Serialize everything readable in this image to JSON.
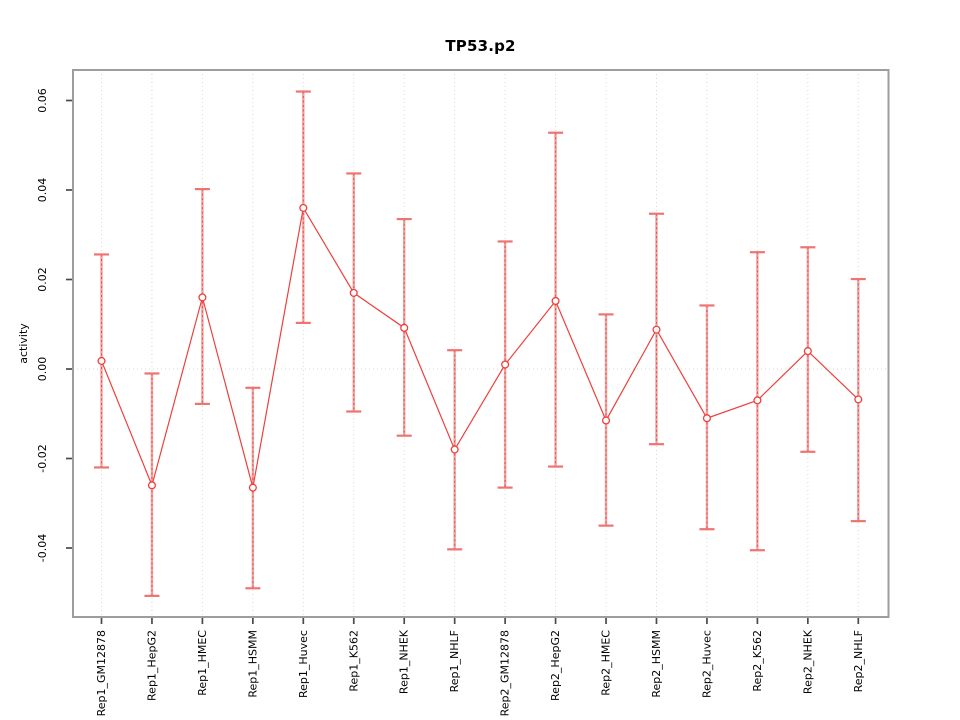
{
  "chart_data": {
    "type": "line",
    "title": "TP53.p2",
    "xlabel": "",
    "ylabel": "activity",
    "legend": "none",
    "marker": "open-circle",
    "categories": [
      "Rep1_GM12878",
      "Rep1_HepG2",
      "Rep1_HMEC",
      "Rep1_HSMM",
      "Rep1_Huvec",
      "Rep1_K562",
      "Rep1_NHEK",
      "Rep1_NHLF",
      "Rep2_GM12878",
      "Rep2_HepG2",
      "Rep2_HMEC",
      "Rep2_HSMM",
      "Rep2_Huvec",
      "Rep2_K562",
      "Rep2_NHEK",
      "Rep2_NHLF"
    ],
    "series": [
      {
        "name": "activity",
        "values": [
          0.0018,
          -0.026,
          0.016,
          -0.0265,
          0.036,
          0.017,
          0.0092,
          -0.018,
          0.001,
          0.0152,
          -0.0115,
          0.0088,
          -0.011,
          -0.007,
          0.004,
          -0.0068
        ],
        "ci_upper": [
          0.0256,
          -0.001,
          0.0402,
          -0.0042,
          0.062,
          0.0437,
          0.0335,
          0.0042,
          0.0285,
          0.0528,
          0.0122,
          0.0347,
          0.0142,
          0.0261,
          0.0272,
          0.0201
        ],
        "ci_lower": [
          -0.022,
          -0.0507,
          -0.0078,
          -0.049,
          0.0103,
          -0.0095,
          -0.0149,
          -0.0403,
          -0.0265,
          -0.0218,
          -0.035,
          -0.0168,
          -0.0358,
          -0.0405,
          -0.0185,
          -0.034
        ]
      }
    ],
    "ytick_labels": [
      "0.06",
      "0.04",
      "0.02",
      "0.00",
      "-0.02",
      "-0.04"
    ],
    "ytick_values": [
      0.06,
      0.04,
      0.02,
      0.0,
      -0.02,
      -0.04
    ],
    "ylim": [
      -0.0554,
      0.0668
    ],
    "grid": {
      "vertical_dotted_per_category": true,
      "horizontal_dotted_zero_line": true
    },
    "colors": {
      "series": "#ed403c",
      "error_bar": "#f2a19f",
      "error_bar_core": "#e4514d",
      "error_bar_cap": "#ee7371",
      "grid": "#d7d7d7",
      "box": "#9d9d9d",
      "tick": "#4a4a4a",
      "text": "#000000",
      "background": "#ffffff"
    }
  }
}
